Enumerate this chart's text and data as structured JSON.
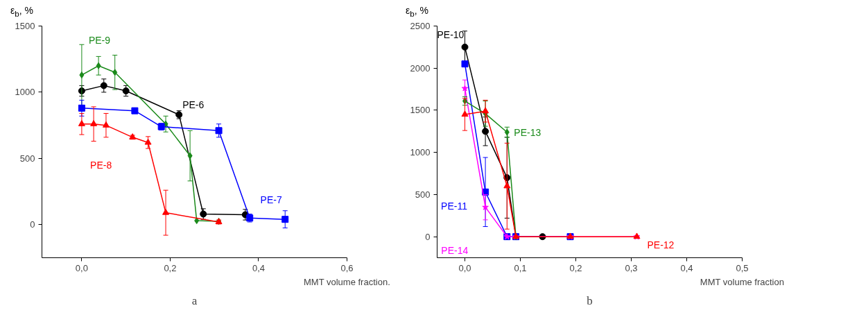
{
  "chart_data": [
    {
      "type": "line",
      "ylabel": "ε$_{b}$, %",
      "xlabel": "MMT volume fraction.",
      "annotations": [
        "a"
      ],
      "grid": false,
      "xlim": [
        -0.09,
        0.6
      ],
      "ylim": [
        -250,
        1500
      ],
      "xticks": [
        {
          "value": 0,
          "label": "0,0"
        },
        {
          "value": 0.2,
          "label": "0,2"
        },
        {
          "value": 0.4,
          "label": "0,4"
        },
        {
          "value": 0.6,
          "label": "0,6"
        }
      ],
      "yticks": [
        0,
        500,
        1000,
        1500
      ],
      "series": [
        {
          "name": "PE-6",
          "color": "#000000",
          "marker": "circle",
          "x": [
            0,
            0.05,
            0.1,
            0.22,
            0.275,
            0.37
          ],
          "values": [
            1010,
            1050,
            1010,
            830,
            80,
            75
          ],
          "errors": [
            40,
            50,
            40,
            30,
            40,
            40
          ]
        },
        {
          "name": "PE-9",
          "color": "#1a8a1a",
          "marker": "diamond",
          "x": [
            0,
            0.038,
            0.075,
            0.19,
            0.245,
            0.26,
            0.31
          ],
          "values": [
            1130,
            1200,
            1150,
            760,
            520,
            30,
            25
          ],
          "errors": [
            230,
            70,
            130,
            60,
            190,
            null,
            null
          ]
        },
        {
          "name": "PE-7",
          "color": "#0000ff",
          "marker": "square",
          "x": [
            0,
            0.12,
            0.18,
            0.31,
            0.38,
            0.46
          ],
          "values": [
            880,
            860,
            740,
            710,
            50,
            40
          ],
          "errors": [
            60,
            20,
            25,
            50,
            30,
            65
          ]
        },
        {
          "name": "PE-8",
          "color": "#ff0000",
          "marker": "triangle",
          "x": [
            0,
            0.027,
            0.055,
            0.115,
            0.15,
            0.19,
            0.31
          ],
          "values": [
            760,
            760,
            750,
            660,
            620,
            90,
            20
          ],
          "errors": [
            80,
            130,
            90,
            15,
            45,
            170,
            15
          ]
        }
      ]
    },
    {
      "type": "line",
      "ylabel": "ε$_{b}$, %",
      "xlabel": "MMT volume fraction",
      "annotations": [
        "b"
      ],
      "grid": false,
      "xlim": [
        -0.05,
        0.5
      ],
      "ylim": [
        -250,
        2500
      ],
      "xticks": [
        {
          "value": 0,
          "label": "0,0"
        },
        {
          "value": 0.1,
          "label": "0,1"
        },
        {
          "value": 0.2,
          "label": "0,2"
        },
        {
          "value": 0.3,
          "label": "0,3"
        },
        {
          "value": 0.4,
          "label": "0,4"
        },
        {
          "value": 0.5,
          "label": "0,5"
        }
      ],
      "yticks": [
        0,
        500,
        1000,
        1500,
        2000,
        2500
      ],
      "series": [
        {
          "name": "PE-10",
          "color": "#000000",
          "marker": "circle",
          "x": [
            0,
            0.037,
            0.076,
            0.092,
            0.14
          ],
          "values": [
            2250,
            1250,
            700,
            0,
            0
          ],
          "errors": [
            190,
            170,
            480,
            null,
            null
          ]
        },
        {
          "name": "PE-11",
          "color": "#0000ff",
          "marker": "square",
          "x": [
            0,
            0.037,
            0.076,
            0.092,
            0.19
          ],
          "values": [
            2050,
            530,
            0,
            0,
            0
          ],
          "errors": [
            30,
            410,
            null,
            null,
            null
          ]
        },
        {
          "name": "PE-14",
          "color": "#ff00ff",
          "marker": "star",
          "x": [
            0,
            0.037,
            0.076,
            0.092,
            0.19,
            0.31
          ],
          "values": [
            1760,
            350,
            0,
            0,
            0,
            0
          ],
          "errors": [
            100,
            150,
            null,
            null,
            null,
            null
          ]
        },
        {
          "name": "PE-13",
          "color": "#1a8a1a",
          "marker": "diamond",
          "x": [
            0,
            0.037,
            0.076,
            0.092
          ],
          "values": [
            1610,
            1460,
            1240,
            0
          ],
          "errors": [
            50,
            150,
            60,
            null
          ]
        },
        {
          "name": "PE-12",
          "color": "#ff0000",
          "marker": "triangle",
          "x": [
            0,
            0.037,
            0.076,
            0.092,
            0.19,
            0.31
          ],
          "values": [
            1450,
            1490,
            600,
            0,
            0,
            0
          ],
          "errors": [
            190,
            130,
            510,
            null,
            null,
            null
          ]
        }
      ]
    }
  ]
}
